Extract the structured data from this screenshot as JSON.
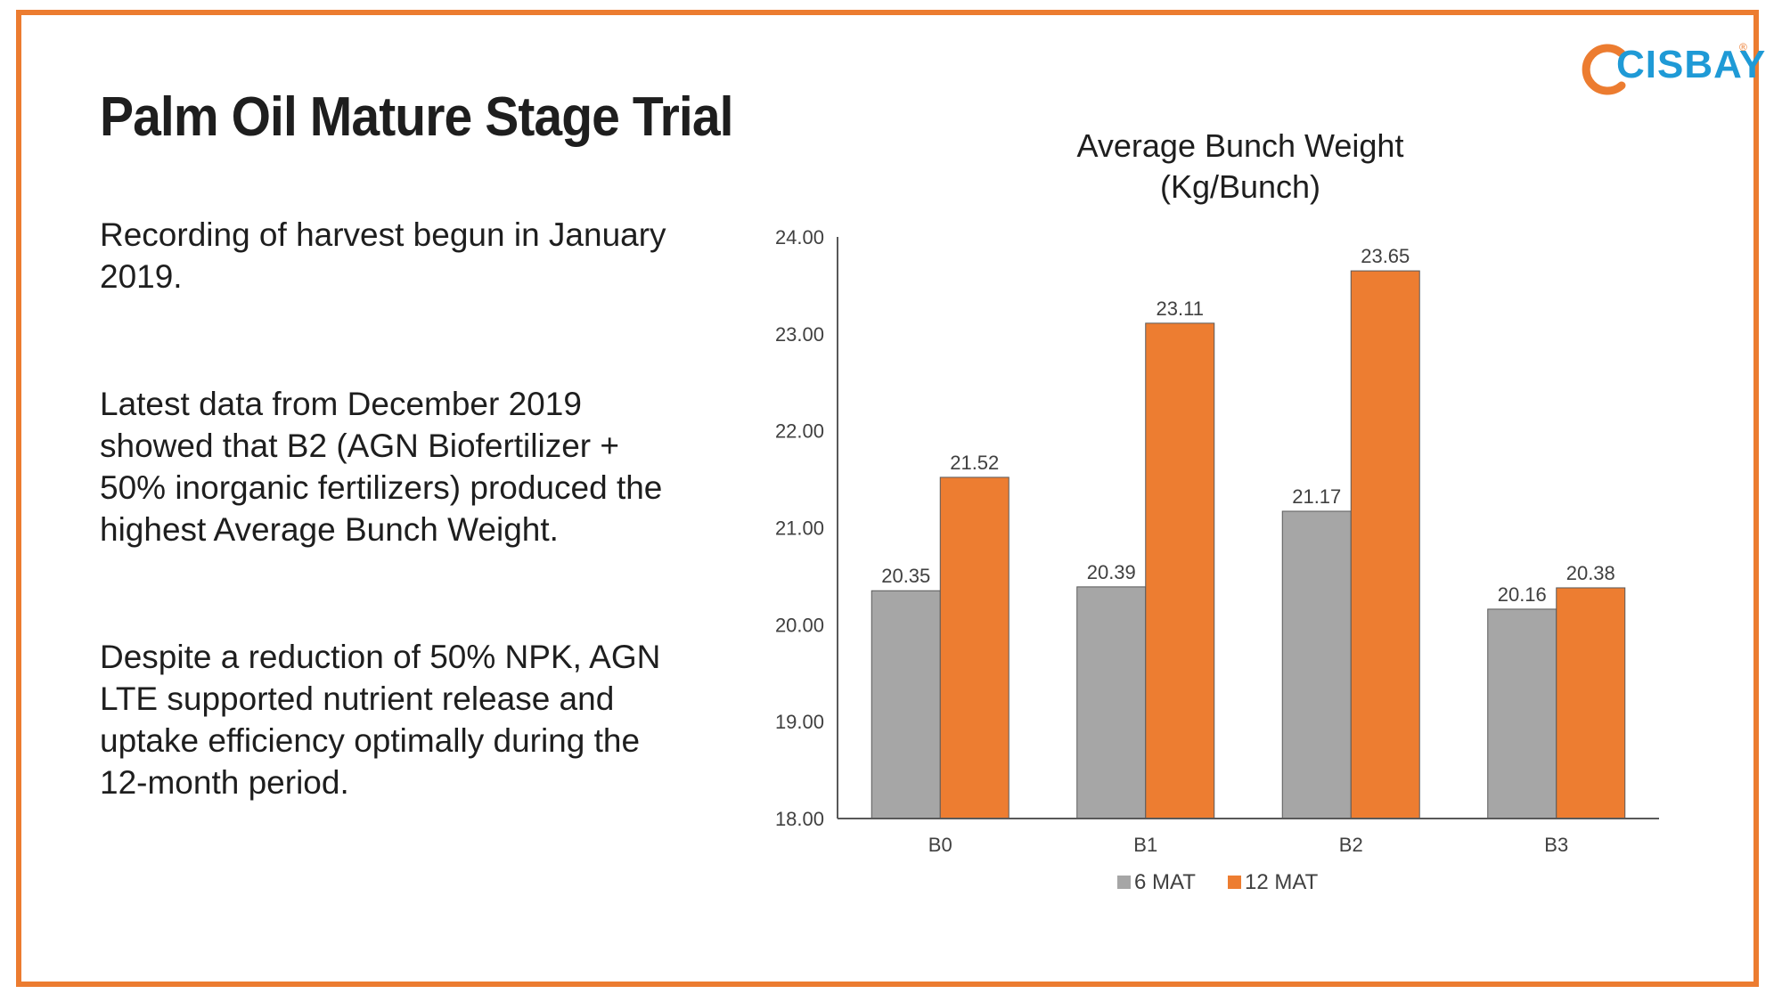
{
  "slide": {
    "title": "Palm Oil Mature Stage Trial",
    "paragraphs": [
      "Recording of harvest begun in January 2019.",
      "Latest data from December 2019 showed that B2 (AGN Biofertilizer + 50% inorganic fertilizers) produced the highest Average Bunch Weight.",
      "Despite a reduction of 50% NPK, AGN LTE supported nutrient release and uptake efficiency optimally during the 12-month period."
    ],
    "logo_text": "CISBAY",
    "logo_mark": "®"
  },
  "colors": {
    "accent": "#ec7c30",
    "series_6mat": "#a6a6a6",
    "series_12mat": "#ed7d31",
    "logo_blue": "#1f9ad6"
  },
  "chart_data": {
    "type": "bar",
    "title_lines": [
      "Average Bunch Weight",
      "(Kg/Bunch)"
    ],
    "categories": [
      "B0",
      "B1",
      "B2",
      "B3"
    ],
    "series": [
      {
        "name": "6 MAT",
        "values": [
          20.35,
          20.39,
          21.17,
          20.16
        ],
        "labels": [
          "20.35",
          "20.39",
          "21.17",
          "20.16"
        ]
      },
      {
        "name": "12 MAT",
        "values": [
          21.52,
          23.11,
          23.65,
          20.38
        ],
        "labels": [
          "21.52",
          "23.11",
          "23.65",
          "20.38"
        ]
      }
    ],
    "ylim": [
      18,
      24
    ],
    "yticks": [
      "18.00",
      "19.00",
      "20.00",
      "21.00",
      "22.00",
      "23.00",
      "24.00"
    ],
    "xlabel": "",
    "ylabel": "",
    "grid": false,
    "legend_position": "bottom"
  }
}
